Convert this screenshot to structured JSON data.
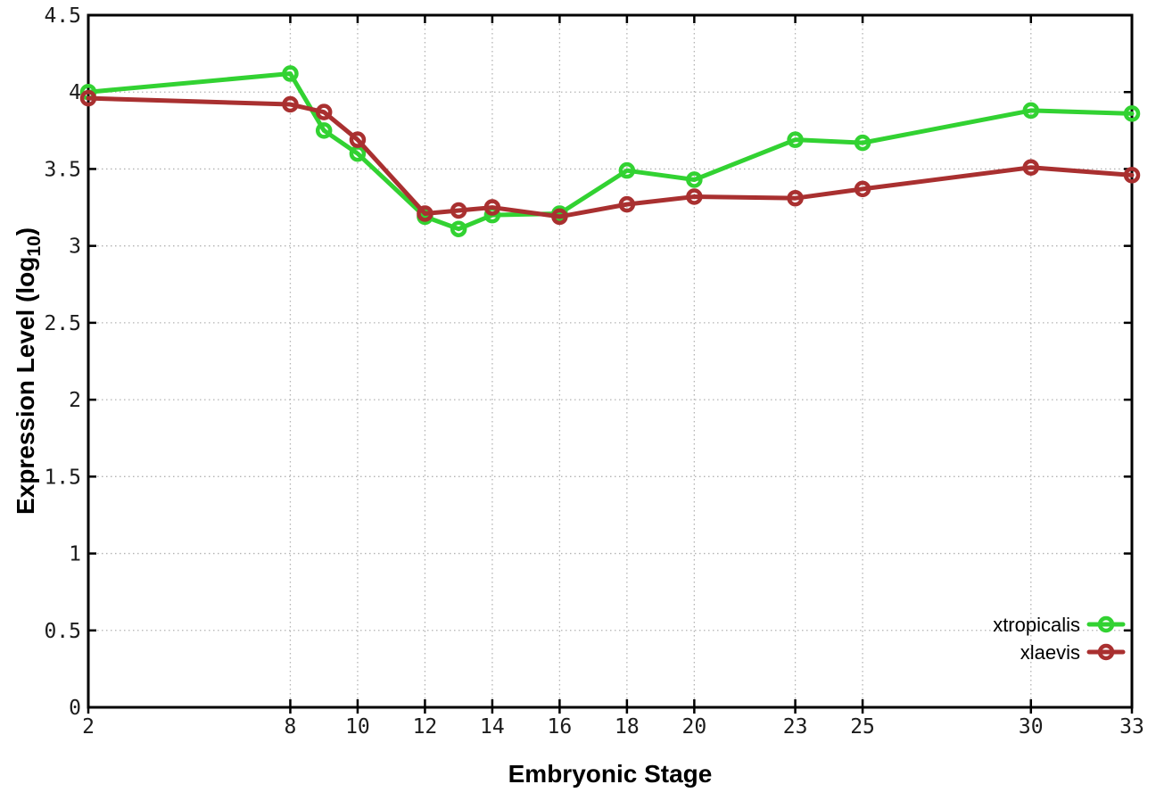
{
  "figure": {
    "background_color": "#ffffff",
    "axis_color": "#000000",
    "grid_color": "#b3b3b3",
    "tick_label_color": "#1c1c1c"
  },
  "chart_data": {
    "type": "line",
    "title": "",
    "xlabel": "Embryonic Stage",
    "ylabel": "Expression Level (log10)",
    "ylabel_parts": {
      "main": "Expression Level (log",
      "sub": "10",
      "end": ")"
    },
    "x": [
      2,
      8,
      9,
      10,
      12,
      13,
      14,
      16,
      18,
      20,
      23,
      25,
      30,
      33
    ],
    "series": [
      {
        "name": "xtropicalis",
        "color": "#32d232",
        "values": [
          4.0,
          4.12,
          3.75,
          3.6,
          3.19,
          3.11,
          3.2,
          3.21,
          3.49,
          3.43,
          3.69,
          3.67,
          3.88,
          3.86
        ]
      },
      {
        "name": "xlaevis",
        "color": "#a93030",
        "values": [
          3.96,
          3.92,
          3.87,
          3.69,
          3.21,
          3.23,
          3.25,
          3.19,
          3.27,
          3.32,
          3.31,
          3.37,
          3.51,
          3.46
        ]
      }
    ],
    "xlim": [
      2,
      33
    ],
    "ylim": [
      0,
      4.5
    ],
    "xtick_values": [
      2,
      8,
      10,
      12,
      14,
      16,
      18,
      20,
      23,
      25,
      30,
      33
    ],
    "xtick_labels": [
      "2",
      "8",
      "10",
      "12",
      "14",
      "16",
      "18",
      "20",
      "23",
      "25",
      "30",
      "33"
    ],
    "ytick_values": [
      0,
      0.5,
      1,
      1.5,
      2,
      2.5,
      3,
      3.5,
      4,
      4.5
    ],
    "ytick_labels": [
      "0",
      "0.5",
      "1",
      "1.5",
      "2",
      "2.5",
      "3",
      "3.5",
      "4",
      "4.5"
    ],
    "grid": true,
    "marker": "open-circle",
    "legend_position": "bottom-right"
  }
}
